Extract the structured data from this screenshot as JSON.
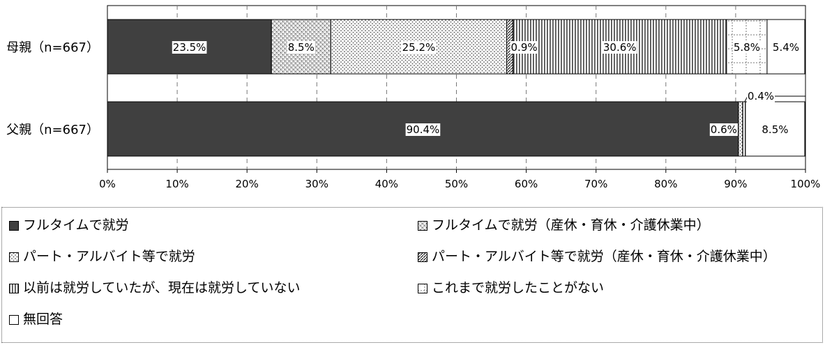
{
  "chart_data": {
    "type": "bar",
    "orientation": "horizontal",
    "stacked": true,
    "categories": [
      "母親（n=667）",
      "父親（n=667）"
    ],
    "series": [
      {
        "name": "フルタイムで就労",
        "values": [
          23.5,
          90.4
        ],
        "labels": [
          "23.5%",
          "90.4%"
        ],
        "pattern": "solid-dark"
      },
      {
        "name": "フルタイムで就労（産休・育休・介護休業中）",
        "values": [
          8.5,
          0.0
        ],
        "labels": [
          "8.5%",
          ""
        ],
        "pattern": "checker"
      },
      {
        "name": "パート・アルバイト等で就労",
        "values": [
          25.2,
          0.6
        ],
        "labels": [
          "25.2%",
          "0.6%"
        ],
        "pattern": "dots"
      },
      {
        "name": "パート・アルバイト等で就労（産休・育休・介護休業中）",
        "values": [
          0.9,
          0.0
        ],
        "labels": [
          "0.9%",
          ""
        ],
        "pattern": "diagonal"
      },
      {
        "name": "以前は就労していたが、現在は就労していない",
        "values": [
          30.6,
          0.4
        ],
        "labels": [
          "30.6%",
          "0.4%"
        ],
        "pattern": "vertical-lines"
      },
      {
        "name": "これまで就労したことがない",
        "values": [
          5.8,
          0.0
        ],
        "labels": [
          "5.8%",
          ""
        ],
        "pattern": "dashed-grid"
      },
      {
        "name": "無回答",
        "values": [
          5.4,
          8.5
        ],
        "labels": [
          "5.4%",
          "8.5%"
        ],
        "pattern": "white"
      }
    ],
    "xlim": [
      0,
      100
    ],
    "xticks": [
      "0%",
      "10%",
      "20%",
      "30%",
      "40%",
      "50%",
      "60%",
      "70%",
      "80%",
      "90%",
      "100%"
    ],
    "grid": "vertical dashed",
    "legend_position": "bottom"
  },
  "colors": {
    "dark": "#404040",
    "border": "#000000"
  }
}
